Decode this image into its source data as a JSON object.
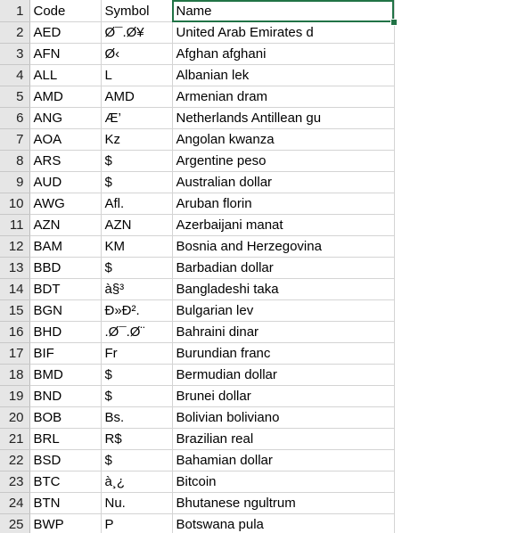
{
  "sheet": {
    "accent_color": "#217346",
    "header_bg": "#e6e6e6",
    "gridline_color": "#d4d4d4",
    "selected_cell": "C1",
    "rows": [
      {
        "num": "1",
        "code": "Code",
        "symbol": "Symbol",
        "name": "Name"
      },
      {
        "num": "2",
        "code": "AED",
        "symbol": "Ø¯.Ø¥",
        "name": "United Arab Emirates d"
      },
      {
        "num": "3",
        "code": "AFN",
        "symbol": "Ø‹",
        "name": "Afghan afghani"
      },
      {
        "num": "4",
        "code": "ALL",
        "symbol": "L",
        "name": "Albanian lek"
      },
      {
        "num": "5",
        "code": "AMD",
        "symbol": "AMD",
        "name": "Armenian dram"
      },
      {
        "num": "6",
        "code": "ANG",
        "symbol": "Æ’",
        "name": "Netherlands Antillean gu"
      },
      {
        "num": "7",
        "code": "AOA",
        "symbol": "Kz",
        "name": "Angolan kwanza"
      },
      {
        "num": "8",
        "code": "ARS",
        "symbol": "$",
        "name": "Argentine peso"
      },
      {
        "num": "9",
        "code": "AUD",
        "symbol": "$",
        "name": "Australian dollar"
      },
      {
        "num": "10",
        "code": "AWG",
        "symbol": "Afl.",
        "name": "Aruban florin"
      },
      {
        "num": "11",
        "code": "AZN",
        "symbol": "AZN",
        "name": "Azerbaijani manat"
      },
      {
        "num": "12",
        "code": "BAM",
        "symbol": "KM",
        "name": "Bosnia and Herzegovina"
      },
      {
        "num": "13",
        "code": "BBD",
        "symbol": "$",
        "name": "Barbadian dollar"
      },
      {
        "num": "14",
        "code": "BDT",
        "symbol": "à§³",
        "name": "Bangladeshi taka"
      },
      {
        "num": "15",
        "code": "BGN",
        "symbol": "Ð»Ð².",
        "name": "Bulgarian lev"
      },
      {
        "num": "16",
        "code": "BHD",
        "symbol": ".Ø¯.Ø¨",
        "name": "Bahraini dinar"
      },
      {
        "num": "17",
        "code": "BIF",
        "symbol": "Fr",
        "name": "Burundian franc"
      },
      {
        "num": "18",
        "code": "BMD",
        "symbol": "$",
        "name": "Bermudian dollar"
      },
      {
        "num": "19",
        "code": "BND",
        "symbol": "$",
        "name": "Brunei dollar"
      },
      {
        "num": "20",
        "code": "BOB",
        "symbol": "Bs.",
        "name": "Bolivian boliviano"
      },
      {
        "num": "21",
        "code": "BRL",
        "symbol": "R$",
        "name": "Brazilian real"
      },
      {
        "num": "22",
        "code": "BSD",
        "symbol": "$",
        "name": "Bahamian dollar"
      },
      {
        "num": "23",
        "code": "BTC",
        "symbol": "à¸¿",
        "name": "Bitcoin"
      },
      {
        "num": "24",
        "code": "BTN",
        "symbol": "Nu.",
        "name": "Bhutanese ngultrum"
      },
      {
        "num": "25",
        "code": "BWP",
        "symbol": "P",
        "name": "Botswana pula"
      }
    ]
  }
}
